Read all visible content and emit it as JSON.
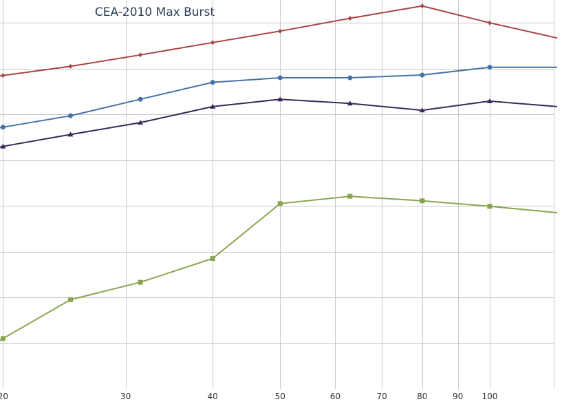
{
  "chart_data": {
    "type": "line",
    "title": "CEA-2010 Max Burst",
    "x_scale": "log",
    "x_ticks": [
      {
        "value": 20,
        "label": "20"
      },
      {
        "value": 30,
        "label": "30"
      },
      {
        "value": 40,
        "label": "40"
      },
      {
        "value": 50,
        "label": "50"
      },
      {
        "value": 60,
        "label": "60"
      },
      {
        "value": 70,
        "label": "70"
      },
      {
        "value": 80,
        "label": "80"
      },
      {
        "value": 90,
        "label": "90"
      },
      {
        "value": 100,
        "label": "100"
      }
    ],
    "xlim": [
      19.8,
      125
    ],
    "ylim": [
      0,
      8.5
    ],
    "y_gridlines": [
      1,
      2,
      3,
      4,
      5,
      6,
      7,
      8
    ],
    "y_tick_labels_visible": false,
    "grid": true,
    "legend": "none",
    "x": [
      20,
      25,
      31.5,
      40,
      50,
      63,
      80,
      100,
      125
    ],
    "series": [
      {
        "color": "#a94442",
        "marker": "diamond",
        "values": [
          6.85,
          7.05,
          7.3,
          7.57,
          7.82,
          8.1,
          8.37,
          8.0,
          7.67
        ]
      },
      {
        "color": "#4572a7",
        "marker": "circle",
        "values": [
          5.72,
          5.97,
          6.33,
          6.7,
          6.8,
          6.8,
          6.86,
          7.03,
          7.03
        ]
      },
      {
        "color": "#3a2757",
        "marker": "triangle",
        "values": [
          5.3,
          5.56,
          5.82,
          6.17,
          6.33,
          6.24,
          6.09,
          6.29,
          6.17
        ]
      },
      {
        "color": "#89a54e",
        "marker": "square",
        "values": [
          1.1,
          1.95,
          2.33,
          2.85,
          4.05,
          4.21,
          4.11,
          3.99,
          3.85
        ]
      }
    ]
  }
}
